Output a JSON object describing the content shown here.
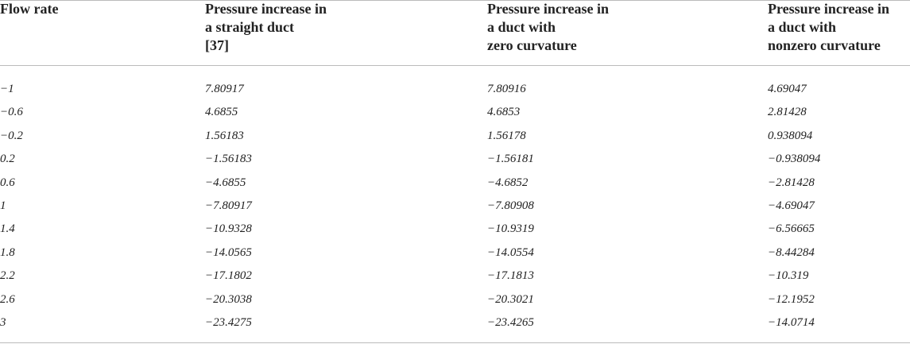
{
  "table": {
    "header": [
      [
        "Flow rate"
      ],
      [
        "Pressure increase in",
        "a straight duct",
        "[37]"
      ],
      [
        "Pressure increase in",
        "a duct with",
        "zero curvature"
      ],
      [
        "Pressure increase in",
        "a duct with",
        "nonzero curvature"
      ]
    ],
    "rows": [
      [
        "−1",
        "7.80917",
        "7.80916",
        "4.69047"
      ],
      [
        "−0.6",
        "4.6855",
        "4.6853",
        "2.81428"
      ],
      [
        "−0.2",
        "1.56183",
        "1.56178",
        "0.938094"
      ],
      [
        "0.2",
        "−1.56183",
        "−1.56181",
        "−0.938094"
      ],
      [
        "0.6",
        "−4.6855",
        "−4.6852",
        "−2.81428"
      ],
      [
        "1",
        "−7.80917",
        "−7.80908",
        "−4.69047"
      ],
      [
        "1.4",
        "−10.9328",
        "−10.9319",
        "−6.56665"
      ],
      [
        "1.8",
        "−14.0565",
        "−14.0554",
        "−8.44284"
      ],
      [
        "2.2",
        "−17.1802",
        "−17.1813",
        "−10.319"
      ],
      [
        "2.6",
        "−20.3038",
        "−20.3021",
        "−12.1952"
      ],
      [
        "3",
        "−23.4275",
        "−23.4265",
        "−14.0714"
      ]
    ]
  }
}
